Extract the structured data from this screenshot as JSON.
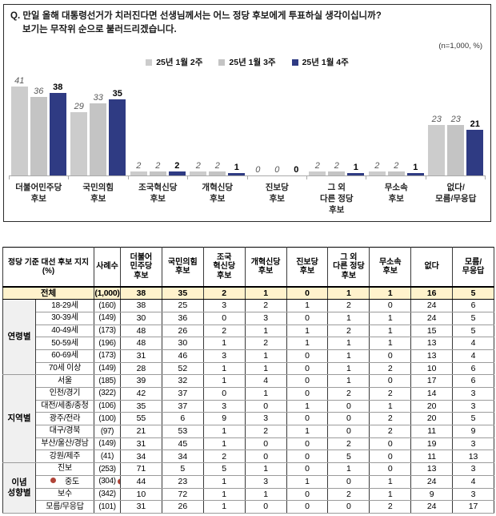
{
  "panel": {
    "question_line1": "Q. 만일 올해 대통령선거가 치러진다면 선생님께서는 어느 정당 후보에게 투표하실 생각이십니까?",
    "question_line2": "보기는 무작위 순으로 불러드리겠습니다.",
    "sample_note": "(n=1,000,  %)"
  },
  "chart_data": {
    "type": "bar",
    "title": "정당 기준 대선 후보 지지",
    "legend": [
      "25년 1월 2주",
      "25년 1월 3주",
      "25년 1월 4주"
    ],
    "legend_position": "top",
    "series_colors": [
      "#cccccc",
      "#c4c4c4",
      "#2f3b83"
    ],
    "categories": [
      [
        "더불어민주당",
        "후보"
      ],
      [
        "국민의힘",
        "후보"
      ],
      [
        "조국혁신당",
        "후보"
      ],
      [
        "개혁신당",
        "후보"
      ],
      [
        "진보당",
        "후보"
      ],
      [
        "그 외",
        "다른 정당",
        "후보"
      ],
      [
        "무소속",
        "후보"
      ],
      [
        "없다/",
        "모름/무응답"
      ]
    ],
    "series": [
      {
        "name": "25년 1월 2주",
        "values": [
          41,
          29,
          2,
          2,
          0,
          2,
          2,
          23
        ]
      },
      {
        "name": "25년 1월 3주",
        "values": [
          36,
          33,
          2,
          2,
          0,
          2,
          2,
          23
        ]
      },
      {
        "name": "25년 1월 4주",
        "values": [
          38,
          35,
          2,
          1,
          0,
          1,
          1,
          21
        ]
      }
    ],
    "ylim": [
      0,
      45
    ],
    "unit": "%",
    "grid": false
  },
  "table": {
    "header_col1": [
      "정당 기준 대선 후보 지지",
      "(%)"
    ],
    "headers": [
      [
        "사례수"
      ],
      [
        "더불어",
        "민주당",
        "후보"
      ],
      [
        "국민의힘",
        "후보"
      ],
      [
        "조국",
        "혁신당",
        "후보"
      ],
      [
        "개혁신당",
        "후보"
      ],
      [
        "진보당",
        "후보"
      ],
      [
        "그 외",
        "다른 정당",
        "후보"
      ],
      [
        "무소속",
        "후보"
      ],
      [
        "없다"
      ],
      [
        "모름/",
        "무응답"
      ]
    ],
    "total": {
      "label": "전체",
      "n": "(1,000)",
      "values": [
        38,
        35,
        2,
        1,
        0,
        1,
        1,
        16,
        5
      ]
    },
    "groups": [
      {
        "label": [
          "연령별"
        ],
        "rows": [
          {
            "label": "18-29세",
            "n": "(160)",
            "values": [
              38,
              25,
              3,
              2,
              1,
              2,
              0,
              24,
              6
            ]
          },
          {
            "label": "30-39세",
            "n": "(149)",
            "values": [
              30,
              36,
              0,
              3,
              0,
              1,
              1,
              24,
              5
            ]
          },
          {
            "label": "40-49세",
            "n": "(173)",
            "values": [
              48,
              26,
              2,
              1,
              1,
              2,
              1,
              15,
              5
            ]
          },
          {
            "label": "50-59세",
            "n": "(196)",
            "values": [
              48,
              30,
              1,
              2,
              1,
              1,
              1,
              13,
              4
            ]
          },
          {
            "label": "60-69세",
            "n": "(173)",
            "values": [
              31,
              46,
              3,
              1,
              0,
              1,
              0,
              13,
              4
            ]
          },
          {
            "label": "70세 이상",
            "n": "(149)",
            "values": [
              28,
              52,
              1,
              1,
              0,
              1,
              2,
              10,
              6
            ]
          }
        ]
      },
      {
        "label": [
          "지역별"
        ],
        "rows": [
          {
            "label": "서울",
            "n": "(185)",
            "values": [
              39,
              32,
              1,
              4,
              0,
              1,
              0,
              17,
              6
            ]
          },
          {
            "label": "인천/경기",
            "n": "(322)",
            "values": [
              42,
              37,
              0,
              1,
              0,
              2,
              2,
              14,
              3
            ]
          },
          {
            "label": "대전/세종/충청",
            "n": "(106)",
            "values": [
              35,
              37,
              3,
              0,
              1,
              0,
              1,
              20,
              3
            ]
          },
          {
            "label": "광주/전라",
            "n": "(100)",
            "values": [
              55,
              6,
              9,
              3,
              0,
              0,
              2,
              20,
              5
            ]
          },
          {
            "label": "대구/경북",
            "n": "(97)",
            "values": [
              21,
              53,
              1,
              2,
              1,
              0,
              2,
              11,
              9
            ]
          },
          {
            "label": "부산/울산/경남",
            "n": "(149)",
            "values": [
              31,
              45,
              1,
              0,
              0,
              2,
              0,
              19,
              3
            ]
          },
          {
            "label": "강원/제주",
            "n": "(41)",
            "values": [
              34,
              34,
              2,
              0,
              0,
              5,
              0,
              11,
              13
            ]
          }
        ]
      },
      {
        "label": [
          "이념",
          "성향별"
        ],
        "rows": [
          {
            "label": "진보",
            "n": "(253)",
            "values": [
              71,
              5,
              5,
              1,
              0,
              1,
              0,
              13,
              3
            ]
          },
          {
            "label": "중도",
            "n": "(304)",
            "values": [
              44,
              23,
              1,
              3,
              1,
              0,
              1,
              24,
              4
            ],
            "marked": true
          },
          {
            "label": "보수",
            "n": "(342)",
            "values": [
              10,
              72,
              1,
              1,
              0,
              2,
              1,
              9,
              3
            ]
          },
          {
            "label": "모름/무응답",
            "n": "(101)",
            "values": [
              31,
              26,
              1,
              0,
              0,
              0,
              2,
              24,
              17
            ]
          }
        ]
      }
    ],
    "marker_color": "#b04438"
  }
}
